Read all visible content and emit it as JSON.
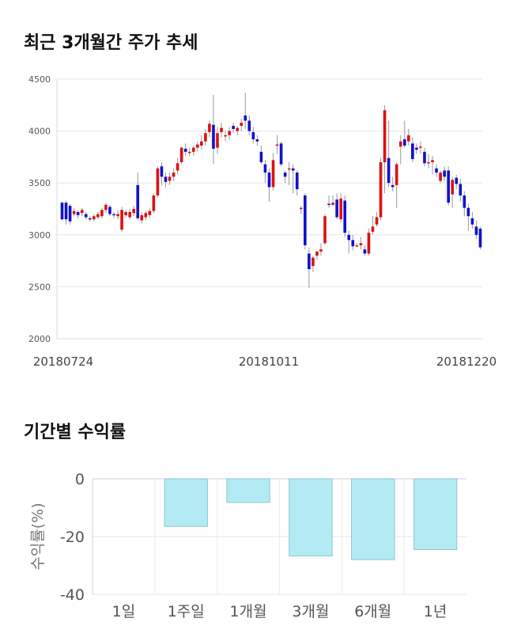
{
  "titles": {
    "price_trend": "최근 3개월간 주가 추세",
    "period_returns": "기간별 수익률"
  },
  "chart_data": [
    {
      "type": "candlestick",
      "title": "최근 3개월간 주가 추세",
      "ylim": [
        2000,
        4500
      ],
      "yticks": [
        2000,
        2500,
        3000,
        3500,
        4000,
        4500
      ],
      "xtick_labels": [
        "20180724",
        "20181011",
        "20181220"
      ],
      "grid": true,
      "colors": {
        "up": "#dd1111",
        "down": "#1111cc"
      },
      "candles": [
        [
          3310,
          3150,
          3320,
          3140
        ],
        [
          3310,
          3150,
          3330,
          3100
        ],
        [
          3280,
          3130,
          3300,
          3100
        ],
        [
          3200,
          3230,
          3260,
          3180
        ],
        [
          3220,
          3190,
          3240,
          3160
        ],
        [
          3210,
          3240,
          3260,
          3180
        ],
        [
          3200,
          3170,
          3220,
          3150
        ],
        [
          3160,
          3150,
          3180,
          3130
        ],
        [
          3150,
          3180,
          3200,
          3130
        ],
        [
          3170,
          3200,
          3220,
          3150
        ],
        [
          3180,
          3240,
          3260,
          3160
        ],
        [
          3240,
          3290,
          3310,
          3210
        ],
        [
          3270,
          3200,
          3290,
          3180
        ],
        [
          3200,
          3190,
          3220,
          3160
        ],
        [
          3180,
          3200,
          3240,
          3150
        ],
        [
          3050,
          3240,
          3270,
          3030
        ],
        [
          3190,
          3220,
          3240,
          3170
        ],
        [
          3170,
          3220,
          3250,
          3150
        ],
        [
          3210,
          3250,
          3280,
          3180
        ],
        [
          3480,
          3160,
          3600,
          3140
        ],
        [
          3140,
          3190,
          3220,
          3110
        ],
        [
          3170,
          3210,
          3230,
          3140
        ],
        [
          3190,
          3230,
          3260,
          3160
        ],
        [
          3230,
          3380,
          3400,
          3210
        ],
        [
          3380,
          3640,
          3660,
          3360
        ],
        [
          3660,
          3560,
          3700,
          3480
        ],
        [
          3560,
          3510,
          3600,
          3460
        ],
        [
          3520,
          3560,
          3600,
          3480
        ],
        [
          3560,
          3600,
          3640,
          3520
        ],
        [
          3620,
          3690,
          3740,
          3580
        ],
        [
          3700,
          3840,
          3850,
          3680
        ],
        [
          3830,
          3800,
          3880,
          3760
        ],
        [
          3800,
          3800,
          3840,
          3760
        ],
        [
          3800,
          3840,
          3860,
          3760
        ],
        [
          3840,
          3870,
          3900,
          3800
        ],
        [
          3860,
          3900,
          3960,
          3820
        ],
        [
          3900,
          3980,
          4020,
          3860
        ],
        [
          3990,
          4070,
          4100,
          3940
        ],
        [
          4060,
          3830,
          4350,
          3680
        ],
        [
          3840,
          3980,
          4040,
          3780
        ],
        [
          3990,
          4030,
          4080,
          3940
        ],
        [
          3950,
          3960,
          4000,
          3900
        ],
        [
          3960,
          4000,
          4040,
          3920
        ],
        [
          4050,
          4020,
          4080,
          3980
        ],
        [
          4000,
          4030,
          4050,
          3960
        ],
        [
          4050,
          4080,
          4120,
          4000
        ],
        [
          4150,
          4100,
          4370,
          4020
        ],
        [
          4100,
          4000,
          4150,
          3960
        ],
        [
          3990,
          3920,
          4040,
          3880
        ],
        [
          3920,
          3900,
          3960,
          3860
        ],
        [
          3800,
          3700,
          3860,
          3680
        ],
        [
          3680,
          3600,
          3720,
          3500
        ],
        [
          3600,
          3460,
          3640,
          3320
        ],
        [
          3460,
          3720,
          3790,
          3430
        ],
        [
          3860,
          3870,
          3960,
          3780
        ],
        [
          3880,
          3680,
          3900,
          3660
        ],
        [
          3600,
          3560,
          3620,
          3500
        ],
        [
          3640,
          3640,
          3700,
          3480
        ],
        [
          3640,
          3620,
          3680,
          3400
        ],
        [
          3600,
          3440,
          3620,
          3380
        ],
        [
          3260,
          3260,
          3280,
          3200
        ],
        [
          3380,
          2900,
          3400,
          2860
        ],
        [
          2820,
          2670,
          2880,
          2490
        ],
        [
          2700,
          2780,
          2800,
          2640
        ],
        [
          2800,
          2840,
          2840,
          2760
        ],
        [
          2840,
          2860,
          2920,
          2800
        ],
        [
          2920,
          3180,
          3200,
          2900
        ],
        [
          3300,
          3290,
          3380,
          3260
        ],
        [
          3290,
          3310,
          3380,
          3280
        ],
        [
          3340,
          3170,
          3400,
          3150
        ],
        [
          3150,
          3350,
          3400,
          3120
        ],
        [
          3330,
          3020,
          3380,
          2980
        ],
        [
          3000,
          2950,
          3040,
          2820
        ],
        [
          2950,
          2890,
          3000,
          2850
        ],
        [
          2890,
          2900,
          2920,
          2880
        ],
        [
          2900,
          2920,
          2980,
          2860
        ],
        [
          2860,
          2820,
          2900,
          2800
        ],
        [
          2820,
          3020,
          3060,
          2800
        ],
        [
          3030,
          3080,
          3180,
          3000
        ],
        [
          3100,
          3170,
          3220,
          3080
        ],
        [
          3170,
          3700,
          3740,
          3140
        ],
        [
          3700,
          4200,
          4250,
          3400
        ],
        [
          3740,
          3500,
          4100,
          3460
        ],
        [
          3480,
          3460,
          3560,
          3420
        ],
        [
          3480,
          3680,
          3700,
          3260
        ],
        [
          3850,
          3900,
          3960,
          3680
        ],
        [
          3920,
          3860,
          4100,
          3840
        ],
        [
          3900,
          3960,
          4020,
          3860
        ],
        [
          3880,
          3730,
          3940,
          3700
        ],
        [
          3840,
          3820,
          3880,
          3780
        ],
        [
          3840,
          3850,
          3900,
          3780
        ],
        [
          3800,
          3690,
          3840,
          3660
        ],
        [
          3700,
          3700,
          3780,
          3640
        ],
        [
          3700,
          3720,
          3760,
          3580
        ],
        [
          3640,
          3600,
          3680,
          3560
        ],
        [
          3520,
          3600,
          3620,
          3500
        ],
        [
          3620,
          3560,
          3660,
          3520
        ],
        [
          3620,
          3310,
          3660,
          3280
        ],
        [
          3390,
          3530,
          3560,
          3260
        ],
        [
          3550,
          3490,
          3580,
          3440
        ],
        [
          3490,
          3380,
          3540,
          3320
        ],
        [
          3380,
          3260,
          3420,
          3180
        ],
        [
          3260,
          3180,
          3300,
          3040
        ],
        [
          3160,
          3100,
          3220,
          3060
        ],
        [
          3080,
          3000,
          3140,
          2960
        ],
        [
          3060,
          2880,
          3080,
          2860
        ]
      ]
    },
    {
      "type": "bar",
      "title": "기간별 수익률",
      "ylabel": "수익률(%)",
      "categories": [
        "1일",
        "1주일",
        "1개월",
        "3개월",
        "6개월",
        "1년"
      ],
      "values": [
        0,
        -16.5,
        -8.2,
        -26.7,
        -28.0,
        -24.5
      ],
      "ylim": [
        -40,
        0
      ],
      "yticks": [
        0,
        -20,
        -40
      ],
      "grid": true,
      "colors": {
        "fill": "#b3ebf4",
        "stroke": "#8fc7d1"
      }
    }
  ]
}
